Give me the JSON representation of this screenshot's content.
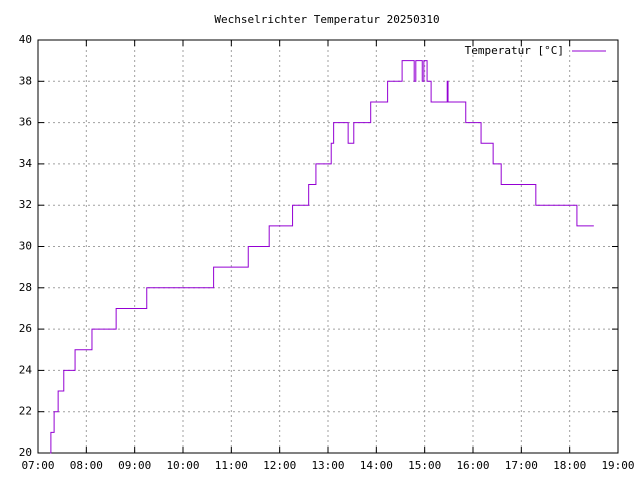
{
  "chart_data": {
    "type": "line",
    "title": "Wechselrichter Temperatur 20250310",
    "x": [
      "07:15",
      "07:16",
      "07:16",
      "07:20",
      "07:20",
      "07:25",
      "07:25",
      "07:32",
      "07:32",
      "07:46",
      "07:46",
      "08:07",
      "08:07",
      "08:37",
      "08:37",
      "09:15",
      "09:15",
      "10:38",
      "10:38",
      "11:21",
      "11:21",
      "11:47",
      "11:47",
      "12:16",
      "12:16",
      "12:36",
      "12:36",
      "12:45",
      "12:45",
      "13:04",
      "13:04",
      "13:07",
      "13:07",
      "13:25",
      "13:25",
      "13:32",
      "13:32",
      "13:53",
      "13:53",
      "14:14",
      "14:14",
      "14:32",
      "14:32",
      "14:47",
      "14:47",
      "14:49",
      "14:49",
      "14:57",
      "14:57",
      "14:59",
      "14:59",
      "15:03",
      "15:03",
      "15:08",
      "15:08",
      "15:28",
      "15:28",
      "15:29",
      "15:29",
      "15:51",
      "15:51",
      "16:10",
      "16:10",
      "16:25",
      "16:25",
      "16:35",
      "16:35",
      "17:18",
      "17:18",
      "18:09",
      "18:09",
      "18:30"
    ],
    "series": [
      {
        "name": "Temperatur [°C]",
        "color": "#9400d3",
        "values": [
          20,
          20,
          21,
          21,
          22,
          22,
          23,
          23,
          24,
          24,
          25,
          25,
          26,
          26,
          27,
          27,
          28,
          28,
          29,
          29,
          30,
          30,
          31,
          31,
          32,
          32,
          33,
          33,
          34,
          34,
          35,
          35,
          36,
          36,
          35,
          35,
          36,
          36,
          37,
          37,
          38,
          38,
          39,
          39,
          38,
          38,
          39,
          39,
          38,
          38,
          39,
          39,
          38,
          38,
          37,
          37,
          38,
          38,
          37,
          37,
          36,
          36,
          35,
          35,
          34,
          34,
          33,
          33,
          32,
          32,
          31,
          31
        ]
      }
    ],
    "xlim": [
      "07:00",
      "19:00"
    ],
    "xticks": [
      "07:00",
      "08:00",
      "09:00",
      "10:00",
      "11:00",
      "12:00",
      "13:00",
      "14:00",
      "15:00",
      "16:00",
      "17:00",
      "18:00",
      "19:00"
    ],
    "ylim": [
      20,
      40
    ],
    "yticks": [
      20,
      22,
      24,
      26,
      28,
      30,
      32,
      34,
      36,
      38,
      40
    ],
    "grid": true,
    "legend": "top-right"
  }
}
